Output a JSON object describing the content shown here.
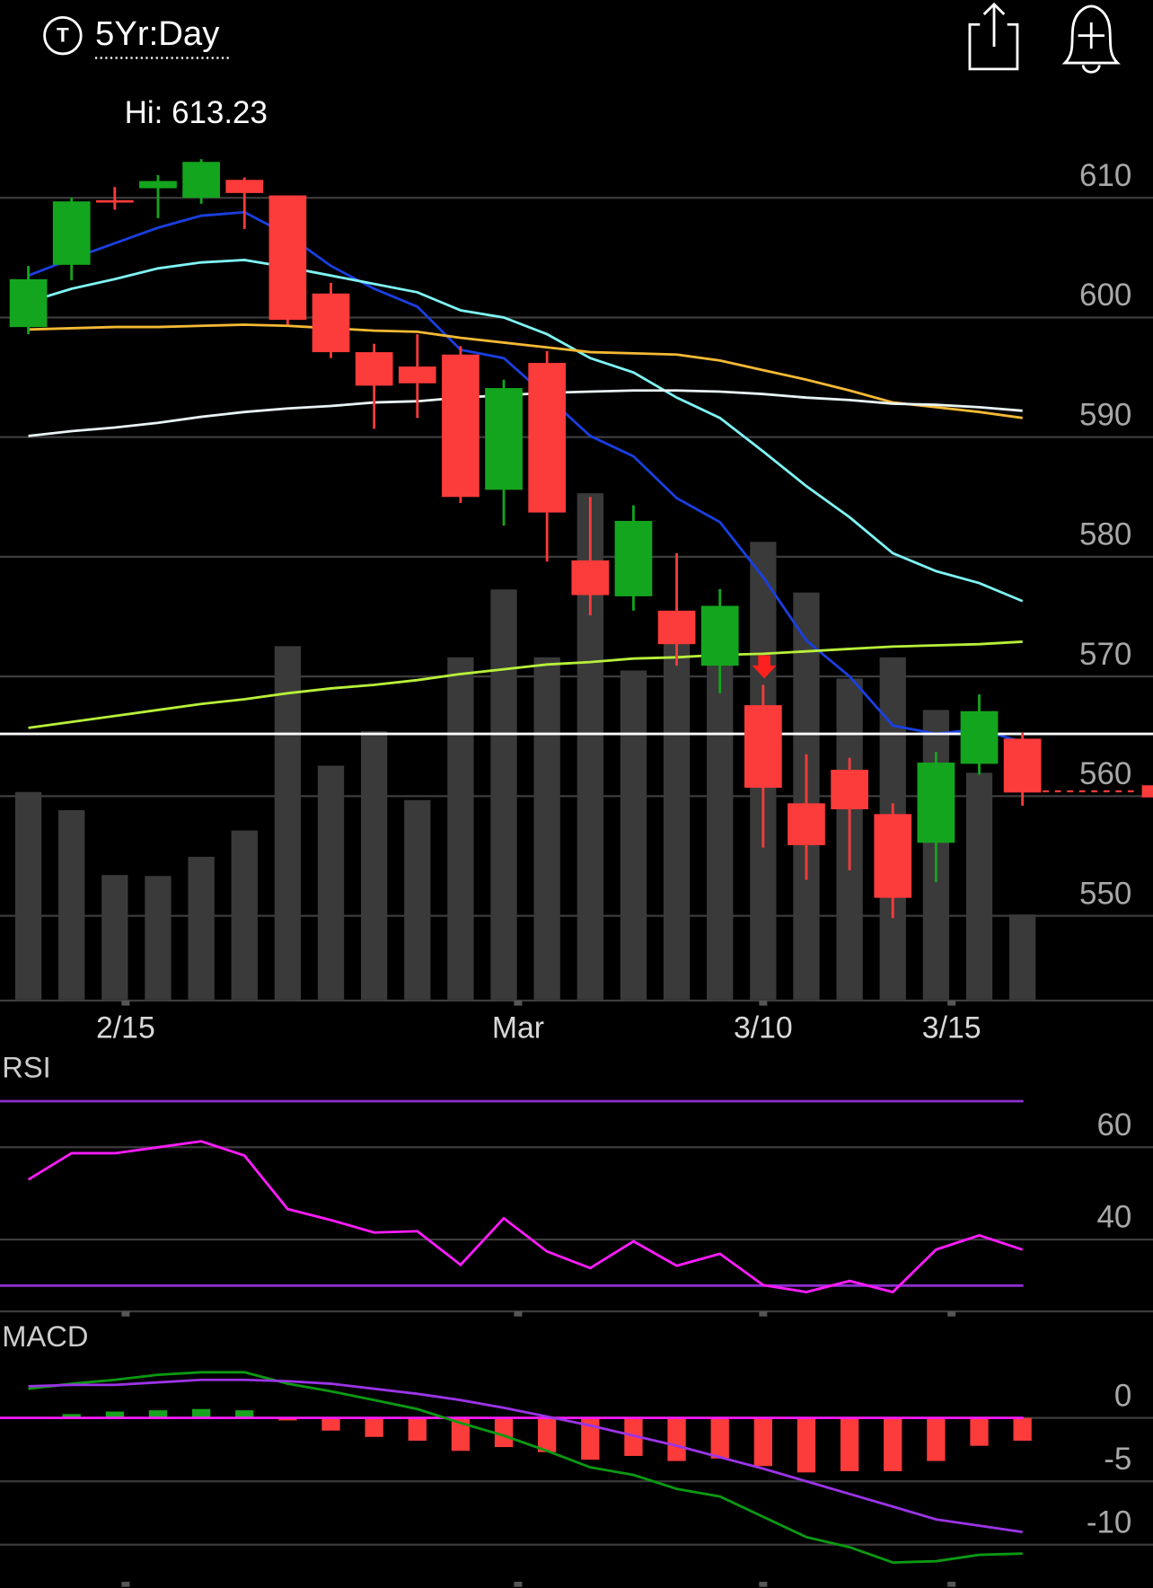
{
  "header": {
    "icon": "T",
    "timeframe": "5Yr:Day"
  },
  "chart_data": [
    {
      "type": "candlestick",
      "annotation": "Hi: 613.23",
      "xlim": [
        -0.656,
        26.02
      ],
      "xticks": [
        {
          "value": 2.25,
          "label": "2/15"
        },
        {
          "value": 11.33,
          "label": "Mar"
        },
        {
          "value": 17,
          "label": "3/10"
        },
        {
          "value": 21.36,
          "label": "3/15"
        }
      ],
      "ylim": [
        543,
        620
      ],
      "yticks": [
        550,
        560,
        570,
        580,
        590,
        600,
        610
      ],
      "grid": true,
      "up_color": "#14a51e",
      "down_color": "#fc3b3b",
      "open": [
        599.2,
        604.4,
        609.8,
        610.8,
        610,
        611.5,
        610.2,
        602,
        597.1,
        595.9,
        596.9,
        585.6,
        596.2,
        579.7,
        576.7,
        575.5,
        570.9,
        567.6,
        559.4,
        562.2,
        558.5,
        556.1,
        562.7,
        564.8
      ],
      "high": [
        604.3,
        610,
        610.9,
        611.9,
        613.23,
        611.7,
        610.2,
        602.9,
        597.8,
        598.6,
        597.6,
        594.8,
        597.2,
        585,
        584.3,
        580.3,
        577.3,
        569.3,
        563.5,
        563.2,
        559.4,
        563.7,
        568.5,
        565.3
      ],
      "low": [
        598.6,
        603.1,
        609,
        608.3,
        609.5,
        607.4,
        599.4,
        596.6,
        590.7,
        591.6,
        584.5,
        582.6,
        579.6,
        575.1,
        575.5,
        570.9,
        568.6,
        555.7,
        553,
        553.8,
        549.8,
        552.8,
        561.8,
        559.2
      ],
      "close": [
        603.2,
        609.7,
        609.6,
        611.4,
        613,
        610.4,
        599.8,
        597.1,
        594.3,
        594.5,
        585,
        594.1,
        583.7,
        576.8,
        583,
        572.7,
        575.9,
        560.7,
        555.9,
        558.9,
        551.5,
        562.8,
        567.1,
        560.3
      ],
      "volume": [
        205,
        187,
        123,
        122,
        141,
        167,
        349,
        231,
        265,
        197,
        338,
        405,
        338,
        500,
        325,
        368,
        348,
        452,
        402,
        317,
        338,
        286,
        224,
        84
      ],
      "vlim": [
        0,
        910
      ],
      "volume_color": "#3a3a3a",
      "lines": [
        {
          "color": "#1a3fe0",
          "values": [
            603.5,
            604.9,
            606.2,
            607.5,
            608.5,
            608.8,
            606.9,
            604.3,
            602.4,
            600.9,
            597.3,
            596.6,
            593.4,
            590.1,
            588.4,
            584.9,
            582.9,
            578.3,
            573.0,
            570.0,
            565.9,
            565.2,
            565.6,
            564.5
          ]
        },
        {
          "color": "#7ff4f4",
          "values": [
            601.3,
            602.4,
            603.2,
            604.1,
            604.6,
            604.8,
            604.2,
            603.5,
            602.8,
            602.1,
            600.6,
            600.0,
            598.6,
            596.6,
            595.4,
            593.3,
            591.6,
            588.8,
            585.9,
            583.3,
            580.3,
            578.8,
            577.8,
            576.3
          ]
        },
        {
          "color": "#f5b935",
          "values": [
            599.0,
            599.1,
            599.2,
            599.2,
            599.3,
            599.4,
            599.3,
            599.1,
            598.9,
            598.8,
            598.3,
            597.9,
            597.5,
            597.1,
            597.0,
            596.9,
            596.4,
            595.6,
            594.8,
            593.9,
            592.9,
            592.5,
            592.1,
            591.6
          ]
        },
        {
          "color": "#e8f4f4",
          "values": [
            590.1,
            590.5,
            590.8,
            591.2,
            591.7,
            592.1,
            592.4,
            592.6,
            592.9,
            593.0,
            593.3,
            593.5,
            593.7,
            593.8,
            593.9,
            593.9,
            593.8,
            593.6,
            593.3,
            593.1,
            592.8,
            592.7,
            592.5,
            592.2
          ]
        },
        {
          "color": "#b8f03a",
          "values": [
            565.7,
            566.2,
            566.7,
            567.2,
            567.7,
            568.1,
            568.6,
            569.0,
            569.3,
            569.7,
            570.2,
            570.6,
            571.0,
            571.2,
            571.5,
            571.6,
            571.8,
            571.9,
            572.1,
            572.3,
            572.5,
            572.6,
            572.7,
            572.9
          ]
        }
      ],
      "hline": 565.2,
      "hline_color": "#ffffff",
      "last_price": 560.4
    },
    {
      "type": "line",
      "title": "RSI",
      "ylim": [
        24.4,
        80.4
      ],
      "yticks": [
        40,
        60
      ],
      "grid": true,
      "levels": [
        30,
        70
      ],
      "level_color": "#8e2fd0",
      "color": "#ff1cff",
      "values": [
        53.0,
        58.7,
        58.7,
        60.0,
        61.3,
        58.2,
        46.6,
        44.2,
        41.5,
        41.8,
        34.5,
        44.6,
        37.4,
        33.8,
        39.6,
        34.3,
        36.9,
        30.1,
        28.6,
        31.0,
        28.6,
        37.8,
        40.9,
        37.8
      ]
    },
    {
      "type": "macd",
      "title": "MACD",
      "ylim": [
        -13.4,
        7.6
      ],
      "yticks": [
        -10,
        -5,
        0
      ],
      "grid": true,
      "zero_color": "#ff1cff",
      "series": [
        {
          "color": "#0b9a12",
          "values": [
            2.3,
            2.7,
            3.0,
            3.4,
            3.6,
            3.6,
            2.7,
            2.1,
            1.4,
            0.7,
            -0.4,
            -1.4,
            -2.6,
            -3.9,
            -4.5,
            -5.6,
            -6.2,
            -7.8,
            -9.4,
            -10.2,
            -11.4,
            -11.3,
            -10.8,
            -10.7
          ]
        },
        {
          "color": "#9b34e6",
          "values": [
            2.5,
            2.6,
            2.6,
            2.8,
            3.0,
            3.0,
            2.9,
            2.7,
            2.3,
            1.9,
            1.4,
            0.8,
            0.1,
            -0.6,
            -1.4,
            -2.2,
            -3.1,
            -4.0,
            -5.0,
            -6.0,
            -7.0,
            -8.0,
            -8.5,
            -9.0
          ]
        }
      ],
      "histogram": [
        0,
        0.3,
        0.5,
        0.6,
        0.7,
        0.6,
        -0.2,
        -1.0,
        -1.5,
        -1.8,
        -2.6,
        -2.3,
        -2.7,
        -3.3,
        -3.0,
        -3.4,
        -3.2,
        -3.8,
        -4.3,
        -4.2,
        -4.2,
        -3.4,
        -2.2,
        -1.8
      ],
      "pos_color": "#19a51f",
      "neg_color": "#fc3b3b"
    }
  ]
}
